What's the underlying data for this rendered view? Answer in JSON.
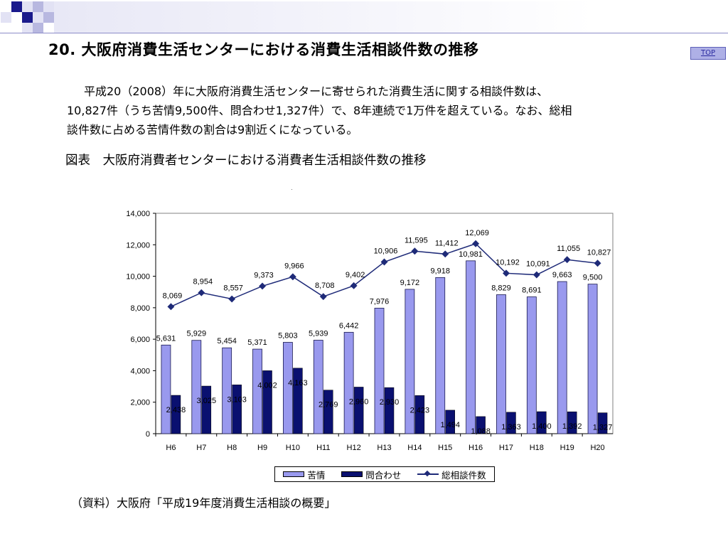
{
  "title": "20. 大阪府消費生活センターにおける消費生活相談件数の推移",
  "top_button": "TOP",
  "paragraph": {
    "line1": "平成20（2008）年に大阪府消費生活センターに寄せられた消費生活に関する相談件数は、",
    "line2": "10,827件（うち苦情9,500件、問合わせ1,327件）で、8年連続で1万件を超えている。なお、総相",
    "line3": "談件数に占める苦情件数の割合は9割近くになっている。"
  },
  "figure_title": "図表　大阪府消費者センターにおける消費者生活相談件数の推移",
  "source": "（資料）大阪府「平成19年度消費生活相談の概要」",
  "colors": {
    "complaint_bar": "#9999ee",
    "inquiry_bar": "#0a1070",
    "total_line": "#1e2a78",
    "deco_blue": "#3c3c9c",
    "deco_light": "#b8b8e0"
  },
  "chart_data": {
    "type": "bar+line",
    "categories": [
      "H6",
      "H7",
      "H8",
      "H9",
      "H10",
      "H11",
      "H12",
      "H13",
      "H14",
      "H15",
      "H16",
      "H17",
      "H18",
      "H19",
      "H20"
    ],
    "series": [
      {
        "name": "苦情",
        "kind": "bar",
        "values": [
          5631,
          5929,
          5454,
          5371,
          5803,
          5939,
          6442,
          7976,
          9172,
          9918,
          10981,
          8829,
          8691,
          9663,
          9500
        ],
        "labels": [
          "5,631",
          "5,929",
          "5,454",
          "5,371",
          "5,803",
          "5,939",
          "6,442",
          "7,976",
          "9,172",
          "9,918",
          "10,981",
          "8,829",
          "8,691",
          "9,663",
          "9,500"
        ]
      },
      {
        "name": "問合わせ",
        "kind": "bar",
        "values": [
          2438,
          3025,
          3103,
          4002,
          4163,
          2769,
          2960,
          2930,
          2423,
          1494,
          1088,
          1363,
          1400,
          1392,
          1327
        ],
        "labels": [
          "2,438",
          "3,025",
          "3,103",
          "4,002",
          "4,163",
          "2,769",
          "2,960",
          "2,930",
          "2,423",
          "1,494",
          "1,088",
          "1,363",
          "1,400",
          "1,392",
          "1,327"
        ]
      },
      {
        "name": "総相談件数",
        "kind": "line",
        "values": [
          8069,
          8954,
          8557,
          9373,
          9966,
          8708,
          9402,
          10906,
          11595,
          11412,
          12069,
          10192,
          10091,
          11055,
          10827
        ],
        "labels": [
          "8,069",
          "8,954",
          "8,557",
          "9,373",
          "9,966",
          "8,708",
          "9,402",
          "10,906",
          "11,595",
          "11,412",
          "12,069",
          "10,192",
          "10,091",
          "11,055",
          "10,827"
        ]
      }
    ],
    "yticks": [
      "0",
      "2,000",
      "4,000",
      "6,000",
      "8,000",
      "10,000",
      "12,000",
      "14,000"
    ],
    "ylim": [
      0,
      14000
    ],
    "grid": false,
    "legend": "bottom"
  }
}
